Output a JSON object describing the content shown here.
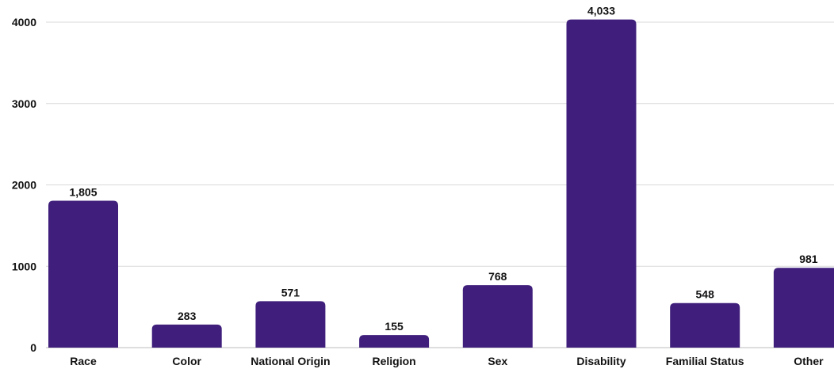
{
  "chart_data": {
    "type": "bar",
    "title": "",
    "xlabel": "",
    "ylabel": "",
    "categories": [
      "Race",
      "Color",
      "National Origin",
      "Religion",
      "Sex",
      "Disability",
      "Familial Status",
      "Other"
    ],
    "values": [
      1805,
      283,
      571,
      155,
      768,
      4033,
      548,
      981
    ],
    "value_labels": [
      "1,805",
      "283",
      "571",
      "155",
      "768",
      "4,033",
      "548",
      "981"
    ],
    "y_ticks": [
      0,
      1000,
      2000,
      3000,
      4000
    ],
    "y_tick_labels": [
      "0",
      "1000",
      "2000",
      "3000",
      "4000"
    ],
    "ylim": [
      0,
      4000
    ],
    "grid": true,
    "legend": "none",
    "bar_color": "#3f1f7b",
    "grid_color": "#d9d9d9"
  }
}
